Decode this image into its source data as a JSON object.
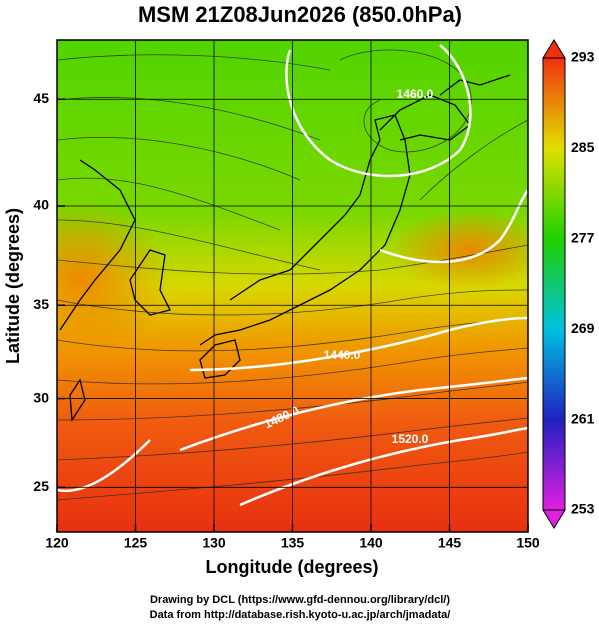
{
  "chart_data": {
    "type": "contour_map",
    "title": "MSM 21Z08Jun2026 (850.0hPa)",
    "xlabel": "Longitude (degrees)",
    "ylabel": "Latitude  (degrees)",
    "xlim": [
      120,
      150
    ],
    "ylim": [
      22.4,
      47.6
    ],
    "yscale": "mercator",
    "xticks": [
      120,
      125,
      130,
      135,
      140,
      145,
      150
    ],
    "yticks": [
      25,
      30,
      35,
      40,
      45
    ],
    "grid": true,
    "colorbar": {
      "lim": [
        253,
        293
      ],
      "ticks": [
        253,
        261,
        269,
        277,
        285,
        293
      ]
    },
    "contour_labels": [
      "1460.0",
      "1440.0",
      "1480.0",
      "1520.0"
    ]
  },
  "footer": {
    "lines": [
      "Drawing by DCL (https://www.gfd-dennou.org/library/dcl/)",
      "Data from http://database.rish.kyoto-u.ac.jp/arch/jmadata/"
    ]
  }
}
